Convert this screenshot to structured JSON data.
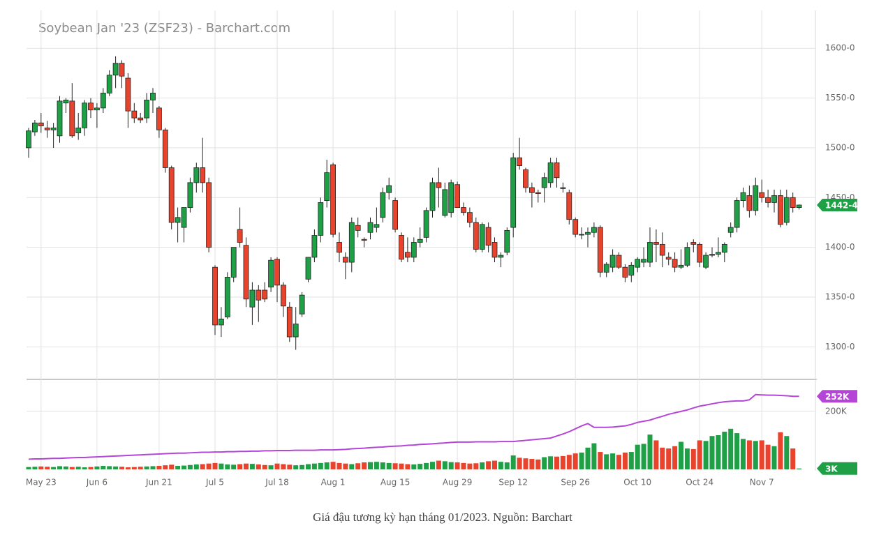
{
  "chart_data": {
    "type": "candlestick",
    "title": "Soybean Jan '23 (ZSF23) - Barchart.com",
    "caption": "Giá đậu tương kỳ hạn tháng 01/2023. Nguồn: Barchart",
    "categories": [
      null,
      null,
      "May 23",
      null,
      null,
      null,
      null,
      null,
      null,
      null,
      null,
      "Jun 6",
      null,
      null,
      null,
      null,
      null,
      null,
      null,
      null,
      null,
      "Jun 21",
      null,
      null,
      null,
      null,
      null,
      null,
      null,
      null,
      "Jul 5",
      null,
      null,
      null,
      null,
      null,
      null,
      null,
      null,
      null,
      "Jul 18",
      null,
      null,
      null,
      null,
      null,
      null,
      null,
      null,
      "Aug 1",
      null,
      null,
      null,
      null,
      null,
      null,
      null,
      null,
      null,
      "Aug 15",
      null,
      null,
      null,
      null,
      null,
      null,
      null,
      null,
      null,
      "Aug 29",
      null,
      null,
      null,
      null,
      null,
      null,
      null,
      null,
      "Sep 12",
      null,
      null,
      null,
      null,
      null,
      null,
      null,
      null,
      null,
      "Sep 26",
      null,
      null,
      null,
      null,
      null,
      null,
      null,
      null,
      null,
      "Oct 10",
      null,
      null,
      null,
      null,
      null,
      null,
      null,
      null,
      null,
      "Oct 24",
      null,
      null,
      null,
      null,
      null,
      null,
      null,
      null,
      null,
      "Nov 7",
      null,
      null,
      null,
      null,
      null,
      null
    ],
    "open": [
      1500,
      1516,
      1525,
      1520,
      1518,
      1512,
      1545,
      1547,
      1515,
      1520,
      1545,
      1538,
      1540,
      1555,
      1573,
      1585,
      1570,
      1537,
      1530,
      1530,
      1548,
      1540,
      1518,
      1480,
      1425,
      1420,
      1440,
      1465,
      1480,
      1465,
      1380,
      1322,
      1330,
      1370,
      1418,
      1402,
      1340,
      1357,
      1357,
      1360,
      1388,
      1362,
      1340,
      1310,
      1333,
      1368,
      1390,
      1412,
      1447,
      1483,
      1405,
      1390,
      1385,
      1422,
      1408,
      1415,
      1420,
      1430,
      1455,
      1447,
      1412,
      1395,
      1390,
      1405,
      1410,
      1437,
      1465,
      1432,
      1435,
      1463,
      1440,
      1435,
      1425,
      1398,
      1420,
      1405,
      1390,
      1395,
      1420,
      1490,
      1478,
      1460,
      1455,
      1460,
      1465,
      1485,
      1460,
      1455,
      1428,
      1413,
      1413,
      1415,
      1420,
      1375,
      1380,
      1392,
      1380,
      1372,
      1380,
      1385,
      1385,
      1405,
      1403,
      1390,
      1388,
      1380,
      1382,
      1405,
      1403,
      1380,
      1392,
      1393,
      1395,
      1415,
      1420,
      1447,
      1452,
      1437,
      1455,
      1450,
      1445,
      1452,
      1425,
      1450,
      1440
    ],
    "high": [
      1520,
      1528,
      1535,
      1527,
      1525,
      1552,
      1550,
      1565,
      1535,
      1548,
      1550,
      1545,
      1560,
      1578,
      1592,
      1588,
      1575,
      1545,
      1535,
      1555,
      1560,
      1542,
      1520,
      1482,
      1440,
      1440,
      1470,
      1485,
      1510,
      1470,
      1382,
      1340,
      1375,
      1400,
      1440,
      1410,
      1365,
      1362,
      1365,
      1390,
      1390,
      1365,
      1345,
      1340,
      1355,
      1390,
      1418,
      1450,
      1488,
      1485,
      1415,
      1395,
      1430,
      1430,
      1410,
      1430,
      1440,
      1460,
      1470,
      1450,
      1415,
      1410,
      1410,
      1420,
      1440,
      1470,
      1480,
      1465,
      1468,
      1466,
      1445,
      1440,
      1430,
      1425,
      1425,
      1410,
      1395,
      1420,
      1495,
      1510,
      1480,
      1465,
      1458,
      1475,
      1490,
      1490,
      1465,
      1458,
      1430,
      1420,
      1420,
      1425,
      1422,
      1385,
      1398,
      1395,
      1383,
      1385,
      1390,
      1400,
      1420,
      1418,
      1415,
      1395,
      1395,
      1398,
      1405,
      1408,
      1405,
      1395,
      1400,
      1410,
      1405,
      1425,
      1450,
      1460,
      1462,
      1470,
      1468,
      1458,
      1458,
      1458,
      1458,
      1455,
      1443
    ],
    "low": [
      1490,
      1512,
      1515,
      1510,
      1500,
      1505,
      1535,
      1510,
      1508,
      1512,
      1530,
      1520,
      1535,
      1552,
      1560,
      1560,
      1520,
      1525,
      1525,
      1525,
      1535,
      1510,
      1475,
      1418,
      1405,
      1405,
      1435,
      1455,
      1455,
      1395,
      1312,
      1310,
      1328,
      1365,
      1400,
      1340,
      1322,
      1325,
      1345,
      1355,
      1345,
      1330,
      1305,
      1297,
      1330,
      1365,
      1385,
      1405,
      1440,
      1410,
      1385,
      1368,
      1375,
      1410,
      1400,
      1408,
      1415,
      1425,
      1448,
      1415,
      1385,
      1385,
      1385,
      1400,
      1405,
      1430,
      1440,
      1430,
      1430,
      1440,
      1432,
      1420,
      1395,
      1395,
      1395,
      1385,
      1380,
      1392,
      1410,
      1478,
      1455,
      1440,
      1445,
      1445,
      1460,
      1460,
      1455,
      1423,
      1410,
      1408,
      1400,
      1410,
      1370,
      1370,
      1375,
      1378,
      1365,
      1365,
      1375,
      1380,
      1380,
      1385,
      1380,
      1382,
      1375,
      1378,
      1380,
      1395,
      1380,
      1378,
      1390,
      1390,
      1385,
      1410,
      1415,
      1440,
      1430,
      1432,
      1445,
      1440,
      1435,
      1420,
      1422,
      1435,
      1438
    ],
    "close": [
      1517,
      1525,
      1522,
      1518,
      1520,
      1547,
      1548,
      1512,
      1520,
      1545,
      1538,
      1540,
      1555,
      1573,
      1585,
      1572,
      1537,
      1530,
      1528,
      1548,
      1555,
      1518,
      1480,
      1425,
      1430,
      1440,
      1465,
      1480,
      1465,
      1400,
      1322,
      1328,
      1370,
      1400,
      1405,
      1348,
      1357,
      1347,
      1348,
      1387,
      1362,
      1341,
      1310,
      1323,
      1352,
      1390,
      1412,
      1445,
      1475,
      1413,
      1395,
      1385,
      1425,
      1417,
      1407,
      1425,
      1423,
      1455,
      1462,
      1418,
      1388,
      1390,
      1405,
      1408,
      1437,
      1465,
      1460,
      1458,
      1465,
      1440,
      1435,
      1425,
      1398,
      1423,
      1402,
      1390,
      1392,
      1417,
      1490,
      1482,
      1460,
      1455,
      1454,
      1470,
      1485,
      1470,
      1459,
      1428,
      1413,
      1413,
      1415,
      1420,
      1375,
      1383,
      1392,
      1380,
      1370,
      1382,
      1388,
      1388,
      1405,
      1403,
      1392,
      1388,
      1380,
      1382,
      1400,
      1403,
      1385,
      1392,
      1393,
      1395,
      1403,
      1420,
      1447,
      1455,
      1437,
      1462,
      1450,
      1445,
      1452,
      1423,
      1450,
      1440,
      1442.5
    ],
    "volume": [
      8000,
      9000,
      10000,
      9000,
      8000,
      11000,
      10000,
      8000,
      9000,
      7000,
      8000,
      10000,
      12000,
      11000,
      10000,
      9000,
      7000,
      8000,
      9000,
      10000,
      11000,
      12000,
      14000,
      16000,
      12000,
      13000,
      15000,
      17000,
      18000,
      20000,
      22000,
      20000,
      17000,
      16000,
      18000,
      20000,
      19000,
      17000,
      15000,
      14000,
      20000,
      18000,
      16000,
      14000,
      15000,
      18000,
      20000,
      22000,
      24000,
      26000,
      22000,
      20000,
      18000,
      21000,
      24000,
      25000,
      26000,
      24000,
      22000,
      21000,
      20000,
      18000,
      17000,
      19000,
      22000,
      26000,
      30000,
      28000,
      25000,
      24000,
      22000,
      20000,
      21000,
      24000,
      28000,
      30000,
      26000,
      24000,
      48000,
      40000,
      38000,
      36000,
      34000,
      42000,
      45000,
      44000,
      46000,
      50000,
      55000,
      58000,
      75000,
      90000,
      60000,
      52000,
      55000,
      50000,
      58000,
      60000,
      85000,
      88000,
      120000,
      100000,
      75000,
      72000,
      80000,
      95000,
      72000,
      70000,
      100000,
      98000,
      115000,
      118000,
      130000,
      140000,
      125000,
      105000,
      100000,
      98000,
      100000,
      85000,
      80000,
      128000,
      115000,
      72000,
      3000
    ],
    "open_interest": [
      35000,
      36000,
      36000,
      37000,
      38000,
      38000,
      39000,
      40000,
      41000,
      41000,
      42000,
      43000,
      44000,
      45000,
      46000,
      47000,
      48000,
      49000,
      50000,
      51000,
      52000,
      53000,
      54000,
      55000,
      56000,
      56000,
      57000,
      58000,
      59000,
      59000,
      60000,
      60000,
      61000,
      61000,
      62000,
      62000,
      63000,
      63000,
      64000,
      64000,
      65000,
      65000,
      65000,
      66000,
      66000,
      66000,
      66000,
      67000,
      67000,
      67000,
      68000,
      69000,
      71000,
      72000,
      73000,
      75000,
      76000,
      77000,
      79000,
      80000,
      81000,
      83000,
      84000,
      86000,
      87000,
      88000,
      90000,
      91000,
      93000,
      94000,
      94000,
      94000,
      95000,
      95000,
      95000,
      95000,
      96000,
      96000,
      96000,
      98000,
      100000,
      102000,
      104000,
      106000,
      108000,
      115000,
      122000,
      130000,
      140000,
      150000,
      158000,
      145000,
      145000,
      145000,
      146000,
      148000,
      150000,
      155000,
      162000,
      166000,
      170000,
      177000,
      183000,
      190000,
      195000,
      200000,
      205000,
      212000,
      218000,
      222000,
      226000,
      230000,
      233000,
      235000,
      236000,
      236000,
      240000,
      258000,
      257000,
      256000,
      256000,
      255000,
      254000,
      252000,
      252000
    ],
    "up_color": "#1fa047",
    "down_color": "#e8432d",
    "open_interest_color": "#b545d6",
    "ylim": [
      1268,
      1638
    ],
    "yticks": [
      {
        "value": 1300,
        "label": "1300-0"
      },
      {
        "value": 1350,
        "label": "1350-0"
      },
      {
        "value": 1400,
        "label": "1400-0"
      },
      {
        "value": 1450,
        "label": "1450-0"
      },
      {
        "value": 1500,
        "label": "1500-0"
      },
      {
        "value": 1550,
        "label": "1550-0"
      },
      {
        "value": 1600,
        "label": "1600-0"
      }
    ],
    "volume_ylim": [
      0,
      308000
    ],
    "volume_yticks": [
      {
        "value": 200000,
        "label": "200K"
      }
    ],
    "price_tag": {
      "value": 1442.5,
      "label": "1442-4"
    },
    "open_interest_tag": {
      "value": 252000,
      "label": "252K"
    },
    "volume_tag": {
      "value": 3000,
      "label": "3K"
    },
    "grid": true
  }
}
